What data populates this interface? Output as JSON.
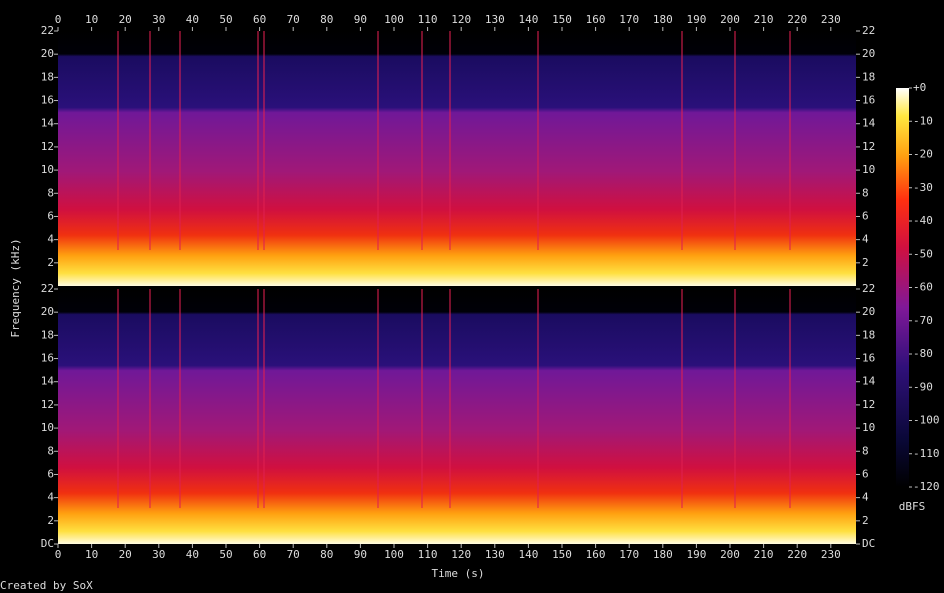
{
  "chart_data": [
    {
      "type": "heatmap",
      "xlim": [
        0,
        237.5
      ],
      "xticks": [
        0,
        10,
        20,
        30,
        40,
        50,
        60,
        70,
        80,
        90,
        100,
        110,
        120,
        130,
        140,
        150,
        160,
        170,
        180,
        190,
        200,
        210,
        220,
        230
      ],
      "ylim": [
        0,
        22
      ],
      "yticks": [
        2,
        4,
        6,
        8,
        10,
        12,
        14,
        16,
        18,
        20,
        22
      ]
    },
    {
      "type": "heatmap",
      "xlim": [
        0,
        237.5
      ],
      "xticks": [
        0,
        10,
        20,
        30,
        40,
        50,
        60,
        70,
        80,
        90,
        100,
        110,
        120,
        130,
        140,
        150,
        160,
        170,
        180,
        190,
        200,
        210,
        220,
        230
      ],
      "ylim": [
        0,
        22
      ],
      "yticks": [
        {
          "value": 0,
          "label": "DC"
        },
        2,
        4,
        6,
        8,
        10,
        12,
        14,
        16,
        18,
        20,
        22
      ]
    }
  ],
  "x_label": "Time (s)",
  "y_label": "Frequency (kHz)",
  "colorbar": {
    "range": [
      -120,
      0
    ],
    "ticks": [
      {
        "value": 0,
        "label": "+0"
      },
      -10,
      -20,
      -30,
      -40,
      -50,
      -60,
      -70,
      -80,
      -90,
      -100,
      -110,
      -120
    ],
    "label": "dBFS"
  },
  "footer": "Created by SoX"
}
